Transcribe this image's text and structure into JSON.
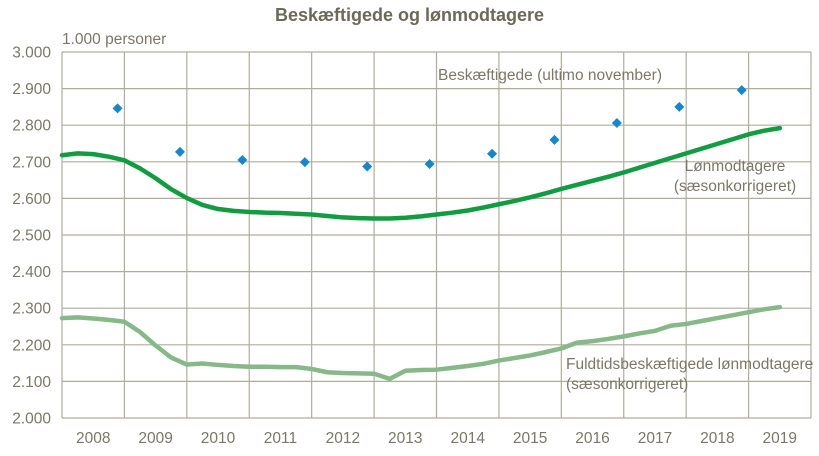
{
  "chart_data": {
    "type": "line+scatter",
    "title": "Beskæftigede og lønmodtagere",
    "unit_label": "1.000 personer",
    "xlim": [
      2008,
      2020
    ],
    "ylim": [
      2000,
      3000
    ],
    "y_tick_step": 100,
    "x_tick_labels": [
      "2008",
      "2009",
      "2010",
      "2011",
      "2012",
      "2013",
      "2014",
      "2015",
      "2016",
      "2017",
      "2018",
      "2019"
    ],
    "y_tick_values": [
      3000,
      2900,
      2800,
      2700,
      2600,
      2500,
      2400,
      2300,
      2200,
      2100,
      2000
    ],
    "y_tick_labels": [
      "3.000",
      "2.900",
      "2.800",
      "2.700",
      "2.600",
      "2.500",
      "2.400",
      "2.300",
      "2.200",
      "2.100",
      "2.000"
    ],
    "grid_on": true,
    "grid_color": "#afac9e",
    "text_color": "#7b7868",
    "title_color": "#6b6957",
    "background_color": "#ffffff",
    "series": [
      {
        "name": "Beskæftigede (ultimo november)",
        "slug": "beskaeftigede-points",
        "type": "scatter",
        "marker": "diamond",
        "color": "#1787c9",
        "x_year_fraction": 0.89,
        "years": [
          2008,
          2009,
          2010,
          2011,
          2012,
          2013,
          2014,
          2015,
          2016,
          2017,
          2018
        ],
        "values": [
          2846,
          2727,
          2705,
          2699,
          2687,
          2694,
          2722,
          2760,
          2806,
          2850,
          2896
        ],
        "label_lines": [
          "Beskæftigede (ultimo november)"
        ]
      },
      {
        "name": "Lønmodtagere (sæsonkorrigeret)",
        "slug": "lonmodtagere-line",
        "type": "line",
        "color": "#129c41",
        "x_start": 2008.0,
        "x_step": 0.25,
        "values": [
          2718,
          2723,
          2721,
          2714,
          2704,
          2682,
          2655,
          2625,
          2601,
          2582,
          2571,
          2566,
          2563,
          2561,
          2560,
          2558,
          2556,
          2552,
          2548,
          2546,
          2545,
          2545,
          2547,
          2551,
          2556,
          2561,
          2567,
          2575,
          2584,
          2593,
          2603,
          2614,
          2626,
          2637,
          2648,
          2659,
          2671,
          2684,
          2697,
          2710,
          2723,
          2736,
          2749,
          2762,
          2775,
          2785,
          2792
        ],
        "label_lines": [
          "Lønmodtagere",
          "(sæsonkorrigeret)"
        ]
      },
      {
        "name": "Fuldtidsbeskæftigede lønmodtagere (sæsonkorrigeret)",
        "slug": "fuldtidsbeskaeftigede-line",
        "type": "line",
        "color": "#87b888",
        "x_start": 2008.0,
        "x_step": 0.25,
        "values": [
          2273,
          2275,
          2272,
          2268,
          2263,
          2235,
          2198,
          2165,
          2146,
          2149,
          2145,
          2142,
          2140,
          2140,
          2139,
          2139,
          2134,
          2125,
          2123,
          2122,
          2121,
          2107,
          2129,
          2131,
          2132,
          2137,
          2142,
          2148,
          2157,
          2164,
          2171,
          2180,
          2190,
          2206,
          2210,
          2216,
          2223,
          2231,
          2238,
          2252,
          2257,
          2265,
          2273,
          2281,
          2289,
          2297,
          2303
        ],
        "label_lines": [
          "Fuldtidsbeskæftigede lønmodtagere",
          "(sæsonkorrigeret)"
        ]
      }
    ]
  }
}
